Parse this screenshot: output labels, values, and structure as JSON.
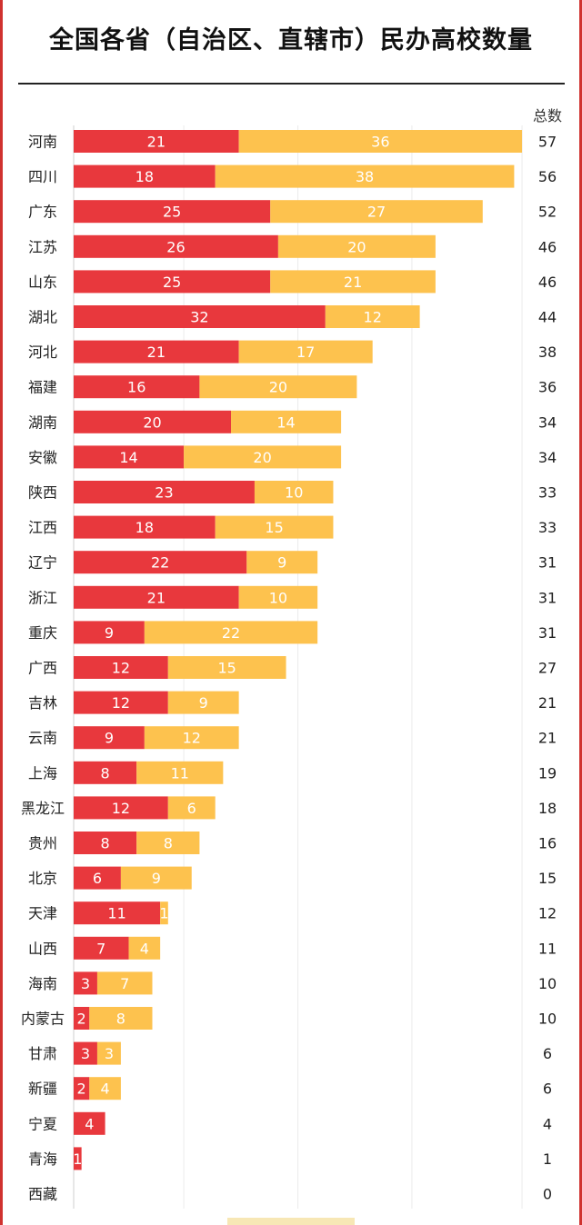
{
  "title": "全国各省（自治区、直辖市）民办高校数量",
  "total_label": "总数",
  "colors": {
    "series_a": "#e8383d",
    "series_b": "#fdc24e",
    "frame": "#d0322f"
  },
  "chart_data": {
    "type": "bar",
    "orientation": "horizontal",
    "stacked": true,
    "title": "全国各省（自治区、直辖市）民办高校数量",
    "categories": [
      "河南",
      "四川",
      "广东",
      "江苏",
      "山东",
      "湖北",
      "河北",
      "福建",
      "湖南",
      "安徽",
      "陕西",
      "江西",
      "辽宁",
      "浙江",
      "重庆",
      "广西",
      "吉林",
      "云南",
      "上海",
      "黑龙江",
      "贵州",
      "北京",
      "天津",
      "山西",
      "海南",
      "内蒙古",
      "甘肃",
      "新疆",
      "宁夏",
      "青海",
      "西藏"
    ],
    "series": [
      {
        "values": [
          21,
          18,
          25,
          26,
          25,
          32,
          21,
          16,
          20,
          14,
          23,
          18,
          22,
          21,
          9,
          12,
          12,
          9,
          8,
          12,
          8,
          6,
          11,
          7,
          3,
          2,
          3,
          2,
          4,
          1,
          0
        ]
      },
      {
        "values": [
          36,
          38,
          27,
          20,
          21,
          12,
          17,
          20,
          14,
          20,
          10,
          15,
          9,
          10,
          22,
          15,
          9,
          12,
          11,
          6,
          8,
          9,
          1,
          4,
          7,
          8,
          3,
          4,
          0,
          0,
          0
        ]
      }
    ],
    "totals": [
      57,
      56,
      52,
      46,
      46,
      44,
      38,
      36,
      34,
      34,
      33,
      33,
      31,
      31,
      31,
      27,
      21,
      21,
      19,
      18,
      16,
      15,
      12,
      11,
      10,
      10,
      6,
      6,
      4,
      1,
      0
    ],
    "xlim": [
      0,
      57
    ],
    "grid": true
  }
}
